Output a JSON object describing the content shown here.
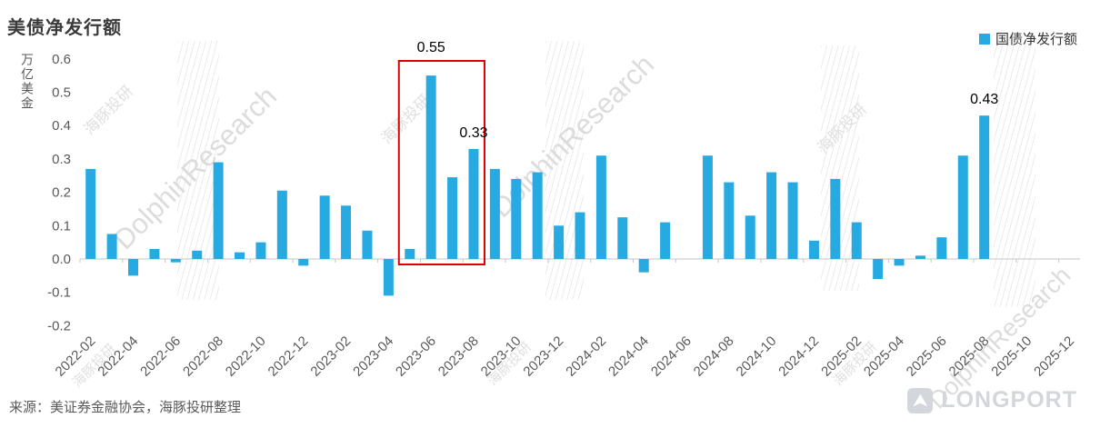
{
  "header": {
    "title": "美债净发行额"
  },
  "legend": {
    "label": "国债净发行额",
    "color": "#27aae1"
  },
  "axes": {
    "y_title": "万亿美金"
  },
  "source": {
    "text": "来源：美证券金融协会，海豚投研整理"
  },
  "brand": {
    "logo_text": "LONGPORT"
  },
  "watermark": {
    "en": "DolphinResearch",
    "zh": "海豚投研"
  },
  "chart_data": {
    "type": "bar",
    "title": "美债净发行额",
    "xlabel": "",
    "ylabel": "万亿美金",
    "ylim": [
      -0.2,
      0.6
    ],
    "grid": false,
    "legend_position": "top-right",
    "bar_color": "#27aae1",
    "y_ticks": [
      0.6,
      0.5,
      0.4,
      0.3,
      0.2,
      0.1,
      0.0,
      -0.1,
      -0.2
    ],
    "x_range": [
      "2022-02",
      "2025-12"
    ],
    "x_tick_labels": [
      "2022-02",
      "2022-04",
      "2022-06",
      "2022-08",
      "2022-10",
      "2022-12",
      "2023-02",
      "2023-04",
      "2023-06",
      "2023-08",
      "2023-10",
      "2023-12",
      "2024-02",
      "2024-04",
      "2024-06",
      "2024-08",
      "2024-10",
      "2024-12",
      "2025-02",
      "2025-04",
      "2025-06",
      "2025-08",
      "2025-10",
      "2025-12"
    ],
    "series": [
      {
        "name": "国债净发行额",
        "color": "#27aae1",
        "x": [
          "2022-02",
          "2022-03",
          "2022-04",
          "2022-05",
          "2022-06",
          "2022-07",
          "2022-08",
          "2022-09",
          "2022-10",
          "2022-11",
          "2022-12",
          "2023-01",
          "2023-02",
          "2023-03",
          "2023-04",
          "2023-05",
          "2023-06",
          "2023-07",
          "2023-08",
          "2023-09",
          "2023-10",
          "2023-11",
          "2023-12",
          "2024-01",
          "2024-02",
          "2024-03",
          "2024-04",
          "2024-05",
          "2024-06",
          "2024-07",
          "2024-08",
          "2024-09",
          "2024-10",
          "2024-11",
          "2024-12",
          "2025-01",
          "2025-02",
          "2025-03",
          "2025-04",
          "2025-05",
          "2025-06",
          "2025-07",
          "2025-08"
        ],
        "values": [
          0.27,
          0.075,
          -0.05,
          0.03,
          -0.01,
          0.025,
          0.29,
          0.02,
          0.05,
          0.205,
          -0.02,
          0.19,
          0.16,
          0.085,
          -0.11,
          0.03,
          0.55,
          0.245,
          0.33,
          0.27,
          0.24,
          0.26,
          0.1,
          0.14,
          0.31,
          0.125,
          -0.04,
          0.11,
          0,
          0.31,
          0.23,
          0.13,
          0.26,
          0.23,
          0.055,
          0.24,
          0.11,
          -0.06,
          -0.02,
          0.01,
          0.065,
          0.31,
          0.43
        ]
      }
    ],
    "annotations": [
      {
        "x": "2023-06",
        "value": 0.55,
        "text": "0.55",
        "y_offset": 26
      },
      {
        "x": "2023-08",
        "value": 0.33,
        "text": "0.33",
        "y_offset": 13
      },
      {
        "x": "2025-08",
        "value": 0.43,
        "text": "0.43",
        "y_offset": 13
      }
    ],
    "highlight_box": {
      "from": "2023-05",
      "to": "2023-08",
      "color": "#dd0000"
    }
  }
}
